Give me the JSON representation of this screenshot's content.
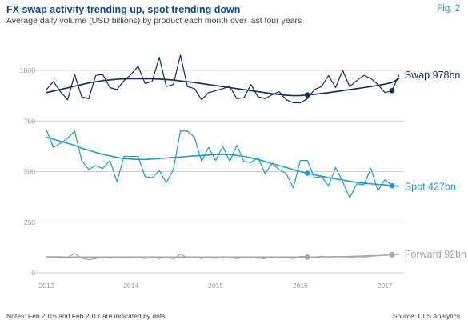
{
  "header": {
    "title": "FX swap activity trending up, spot trending down",
    "subtitle": "Average daily volume (USD billions) by product each month over last four years",
    "figure_label": "Fig. 2"
  },
  "footer": {
    "notes": "Notes:  Feb 2016 and Feb 2017 are indicated by dots",
    "source": "Source: CLS Analytics"
  },
  "chart_data": {
    "type": "line",
    "title": "FX swap activity trending up, spot trending down",
    "subtitle": "Average daily volume (USD billions) by product each month over last four years",
    "xlabel": "",
    "ylabel": "",
    "xlim": [
      2013.0,
      2017.083
    ],
    "ylim": [
      0,
      1000
    ],
    "x_ticks": [
      "2013",
      "2014",
      "2015",
      "2016",
      "2017"
    ],
    "y_ticks": [
      "0",
      "250",
      "500",
      "750",
      "1000"
    ],
    "grid": true,
    "x_start": "2013-01",
    "x_end": "2017-02",
    "highlight_months": [
      "2016-02",
      "2017-02"
    ],
    "series": [
      {
        "name": "Swap",
        "label": "Swap 978bn",
        "color": "#0d2e5c",
        "values": [
          905,
          945,
          895,
          855,
          980,
          870,
          860,
          975,
          980,
          915,
          905,
          950,
          980,
          1020,
          935,
          945,
          1065,
          920,
          930,
          1075,
          920,
          910,
          855,
          890,
          900,
          910,
          920,
          860,
          865,
          930,
          870,
          860,
          880,
          895,
          855,
          840,
          840,
          860,
          905,
          920,
          975,
          915,
          1000,
          920,
          950,
          975,
          960,
          930,
          890,
          900,
          978
        ],
        "trend": [
          890,
          898,
          906,
          914,
          922,
          930,
          938,
          944,
          950,
          953,
          956,
          958,
          959,
          959,
          959,
          958,
          957,
          955,
          952,
          948,
          944,
          940,
          935,
          930,
          925,
          920,
          915,
          910,
          905,
          900,
          895,
          890,
          885,
          881,
          877,
          875,
          876,
          879,
          882,
          886,
          890,
          895,
          900,
          905,
          910,
          915,
          920,
          926,
          932,
          940,
          960
        ]
      },
      {
        "name": "Spot",
        "label": "Spot 427bn",
        "color": "#1a9bd7",
        "values": [
          705,
          620,
          640,
          665,
          700,
          555,
          510,
          530,
          515,
          555,
          450,
          575,
          575,
          575,
          475,
          470,
          505,
          445,
          510,
          700,
          700,
          670,
          550,
          620,
          555,
          625,
          550,
          630,
          550,
          545,
          570,
          490,
          540,
          510,
          490,
          420,
          555,
          555,
          470,
          475,
          430,
          520,
          450,
          370,
          440,
          435,
          515,
          405,
          460,
          430,
          427
        ],
        "trend": [
          670,
          660,
          650,
          640,
          630,
          615,
          605,
          595,
          585,
          578,
          570,
          565,
          562,
          560,
          560,
          562,
          565,
          567,
          570,
          572,
          575,
          578,
          580,
          582,
          584,
          585,
          584,
          580,
          575,
          568,
          560,
          550,
          540,
          530,
          520,
          510,
          500,
          492,
          484,
          477,
          470,
          464,
          458,
          452,
          447,
          443,
          440,
          437,
          434,
          431,
          429
        ]
      },
      {
        "name": "Forward",
        "label": "Forward 92bn",
        "color": "#a6a6a6",
        "values": [
          80,
          80,
          80,
          77,
          95,
          72,
          65,
          70,
          78,
          72,
          80,
          75,
          75,
          78,
          70,
          80,
          70,
          80,
          68,
          92,
          75,
          80,
          70,
          78,
          70,
          80,
          75,
          70,
          75,
          78,
          72,
          70,
          80,
          75,
          78,
          70,
          82,
          80,
          78,
          82,
          78,
          80,
          80,
          75,
          80,
          78,
          82,
          85,
          88,
          90,
          92
        ],
        "trend": [
          78,
          78,
          78,
          78,
          78,
          78,
          78,
          78,
          78,
          78,
          78,
          78,
          78,
          78,
          78,
          78,
          78,
          78,
          78,
          78,
          78,
          78,
          78,
          78,
          78,
          78,
          78,
          78,
          78,
          78,
          78,
          78,
          78,
          78,
          78,
          78,
          78,
          78,
          78,
          79,
          79,
          80,
          80,
          81,
          82,
          83,
          84,
          85,
          87,
          89,
          92
        ]
      }
    ]
  }
}
